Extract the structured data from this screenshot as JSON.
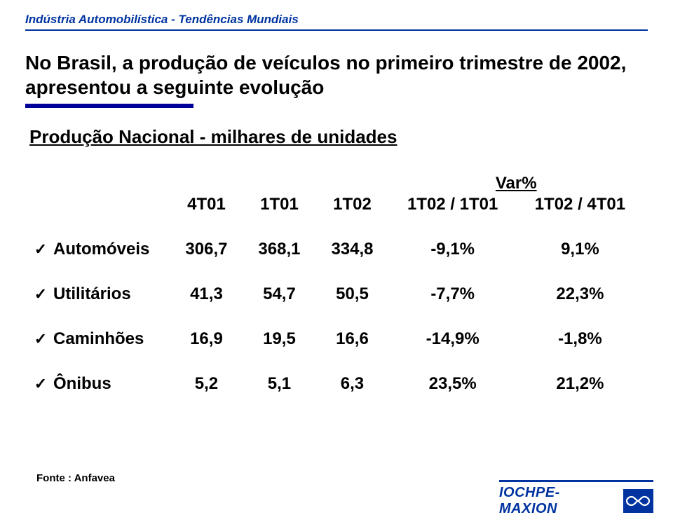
{
  "header": {
    "small_title": "Indústria Automobilística - Tendências Mundiais",
    "title": "No Brasil, a produção de veículos no primeiro trimestre de 2002, apresentou a seguinte evolução",
    "subtitle": "Produção Nacional - milhares de unidades"
  },
  "table": {
    "var_label": "Var%",
    "columns": [
      "4T01",
      "1T01",
      "1T02",
      "1T02 / 1T01",
      "1T02 / 4T01"
    ],
    "rows": [
      {
        "label": "Automóveis",
        "v1": "306,7",
        "v2": "368,1",
        "v3": "334,8",
        "p1": "-9,1%",
        "p2": "9,1%"
      },
      {
        "label": "Utilitários",
        "v1": "41,3",
        "v2": "54,7",
        "v3": "50,5",
        "p1": "-7,7%",
        "p2": "22,3%"
      },
      {
        "label": "Caminhões",
        "v1": "16,9",
        "v2": "19,5",
        "v3": "16,6",
        "p1": "-14,9%",
        "p2": "-1,8%"
      },
      {
        "label": "Ônibus",
        "v1": "5,2",
        "v2": "5,1",
        "v3": "6,3",
        "p1": "23,5%",
        "p2": "21,2%"
      }
    ]
  },
  "source": "Fonte : Anfavea",
  "logo": {
    "text": "IOCHPE-MAXION"
  },
  "styling": {
    "brand_blue": "#0033a0",
    "dark_blue": "#000099",
    "background": "#ffffff",
    "title_fontsize": 28,
    "subtitle_fontsize": 26,
    "table_fontsize": 24,
    "source_fontsize": 15,
    "header_small_fontsize": 17,
    "checkmark_glyph": "✓"
  }
}
